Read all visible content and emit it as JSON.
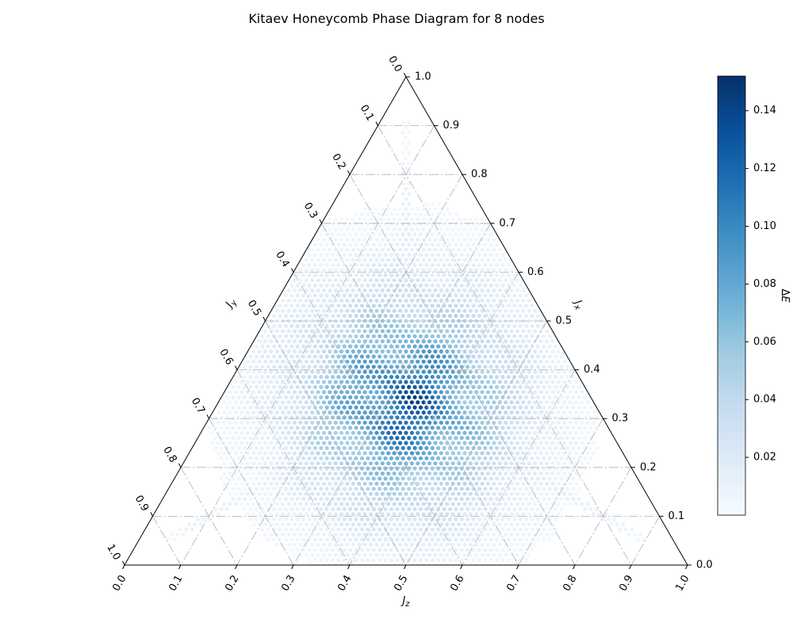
{
  "chart_data": {
    "type": "scatter",
    "subtype": "ternary",
    "title": "Kitaev Honeycomb Phase Diagram for 8 nodes",
    "axes": {
      "bottom": {
        "label": "J_z",
        "label_base": "J",
        "label_sub": "z",
        "ticks": [
          "0.0",
          "0.1",
          "0.2",
          "0.3",
          "0.4",
          "0.5",
          "0.6",
          "0.7",
          "0.8",
          "0.9",
          "1.0"
        ]
      },
      "right": {
        "label": "J_x",
        "label_base": "J",
        "label_sub": "x",
        "ticks": [
          "0.0",
          "0.1",
          "0.2",
          "0.3",
          "0.4",
          "0.5",
          "0.6",
          "0.7",
          "0.8",
          "0.9",
          "1.0"
        ]
      },
      "left": {
        "label": "J_y",
        "label_base": "J",
        "label_sub": "y",
        "ticks": [
          "0.0",
          "0.1",
          "0.2",
          "0.3",
          "0.4",
          "0.5",
          "0.6",
          "0.7",
          "0.8",
          "0.9",
          "1.0"
        ]
      }
    },
    "grid": true,
    "value_description": "Energy gap ΔE evaluated on a dense grid of (J_x, J_y, J_z) with J_x+J_y+J_z=1; maximum near the isotropic point (1/3,1/3,1/3), bright streaks along the medians",
    "value_range": [
      0.0,
      0.152
    ],
    "peak_point": {
      "Jx": 0.333,
      "Jy": 0.333,
      "Jz": 0.333,
      "deltaE": 0.152
    },
    "colormap": [
      "#f7fbff",
      "#deebf7",
      "#c6dbef",
      "#9ecae1",
      "#6baed6",
      "#4292c6",
      "#2171b5",
      "#08519c",
      "#08306b"
    ],
    "colorbar": {
      "label": "ΔE",
      "label_base": "Δ",
      "label_sub": "E",
      "placement": "right",
      "ticks": [
        {
          "value": 0.02,
          "label": "0.02"
        },
        {
          "value": 0.04,
          "label": "0.04"
        },
        {
          "value": 0.06,
          "label": "0.06"
        },
        {
          "value": 0.08,
          "label": "0.08"
        },
        {
          "value": 0.1,
          "label": "0.10"
        },
        {
          "value": 0.12,
          "label": "0.12"
        },
        {
          "value": 0.14,
          "label": "0.14"
        }
      ],
      "range": [
        0.0,
        0.152
      ]
    }
  }
}
